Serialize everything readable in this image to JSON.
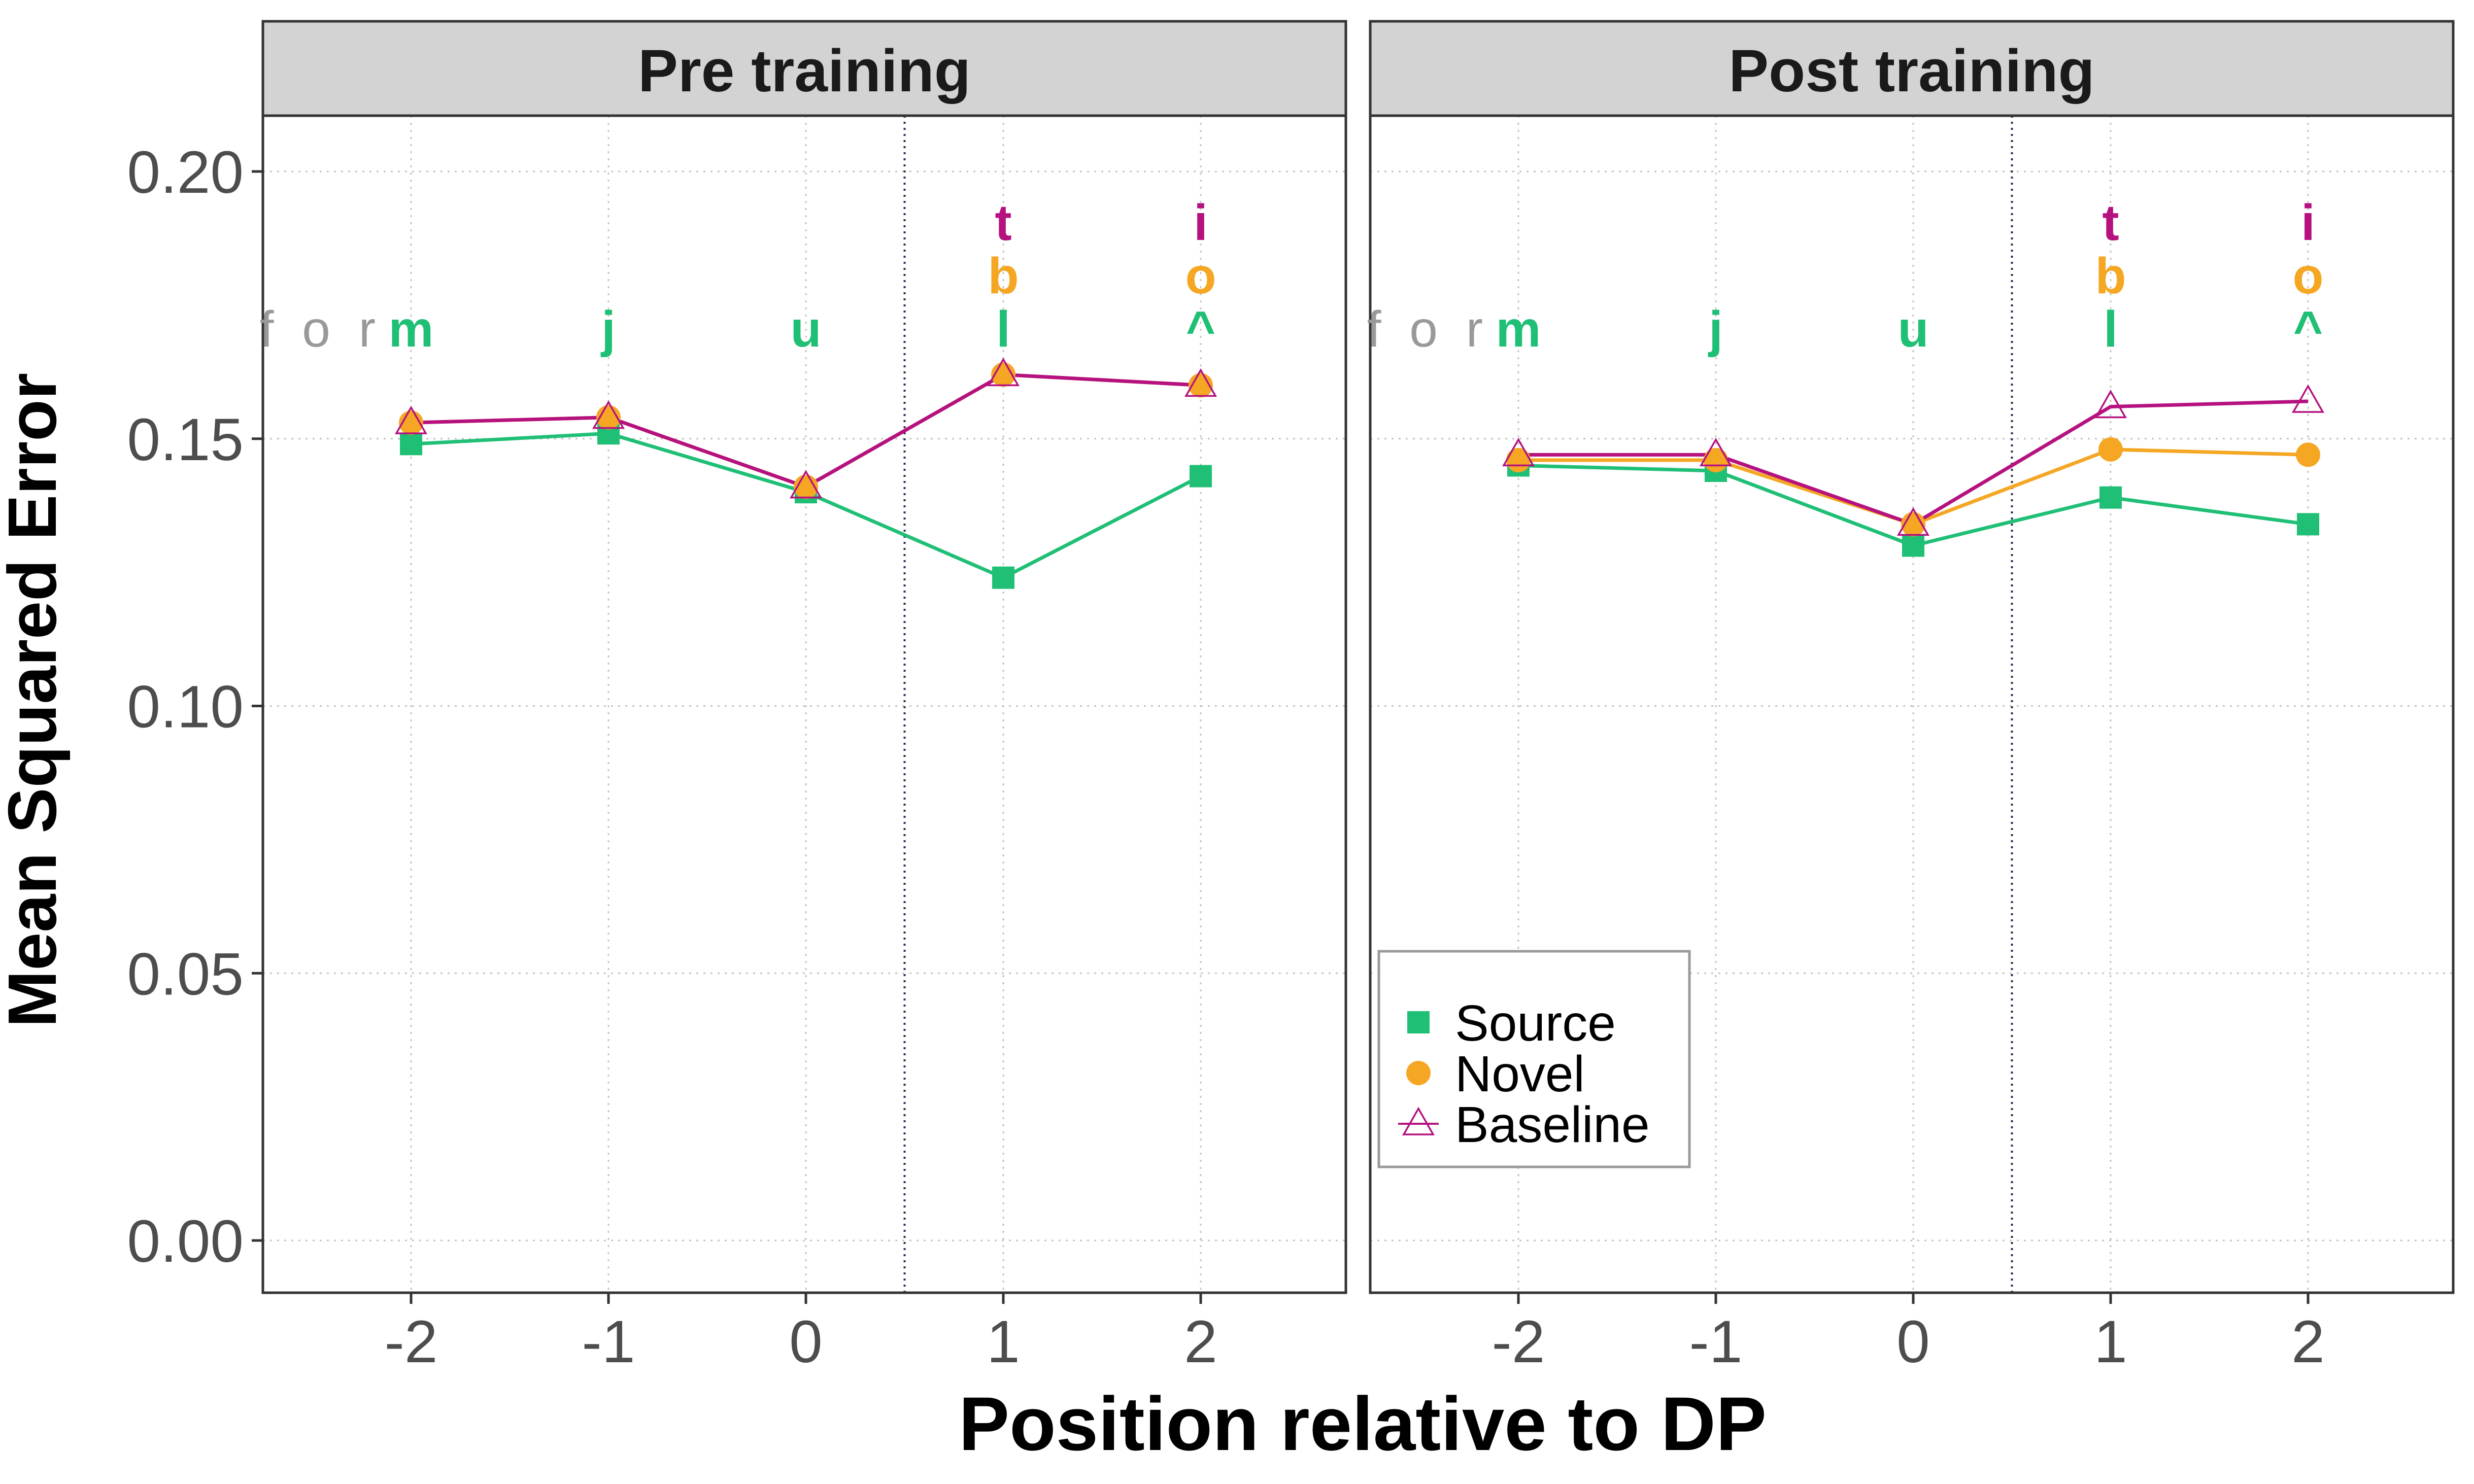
{
  "chart_data": {
    "type": "line",
    "xlabel": "Position relative to DP",
    "ylabel": "Mean Squared Error",
    "x": [
      -2,
      -1,
      0,
      1,
      2
    ],
    "x_ticks": [
      "-2",
      "-1",
      "0",
      "1",
      "2"
    ],
    "y_ticks": [
      "0.00",
      "0.05",
      "0.10",
      "0.15",
      "0.20"
    ],
    "ylim": [
      -0.01,
      0.21
    ],
    "xlim": [
      -2.75,
      2.75
    ],
    "dp_boundary_x": 0.5,
    "grid": true,
    "legend": {
      "position": "bottom-left of Post training panel",
      "entries": [
        "Source",
        "Novel",
        "Baseline"
      ]
    },
    "colors": {
      "source": "#1fbf75",
      "novel": "#f5a623",
      "baseline": "#b5117f",
      "context": "#999999"
    },
    "annotations": {
      "context_text": "f o r",
      "source_letters": [
        "m",
        "j",
        "u",
        "l",
        "^"
      ],
      "novel_letters": [
        "",
        "",
        "",
        "b",
        "o"
      ],
      "baseline_letters": [
        "",
        "",
        "",
        "t",
        "i"
      ]
    },
    "panels": [
      {
        "title": "Pre training",
        "series": [
          {
            "name": "Source",
            "values": [
              0.149,
              0.151,
              0.14,
              0.124,
              0.143
            ]
          },
          {
            "name": "Novel",
            "values": [
              0.153,
              0.154,
              0.141,
              0.162,
              0.16
            ]
          },
          {
            "name": "Baseline",
            "values": [
              0.153,
              0.154,
              0.141,
              0.162,
              0.16
            ]
          }
        ]
      },
      {
        "title": "Post training",
        "series": [
          {
            "name": "Source",
            "values": [
              0.145,
              0.144,
              0.13,
              0.139,
              0.134
            ]
          },
          {
            "name": "Novel",
            "values": [
              0.146,
              0.146,
              0.134,
              0.148,
              0.147
            ]
          },
          {
            "name": "Baseline",
            "values": [
              0.147,
              0.147,
              0.134,
              0.156,
              0.157
            ]
          }
        ]
      }
    ]
  }
}
